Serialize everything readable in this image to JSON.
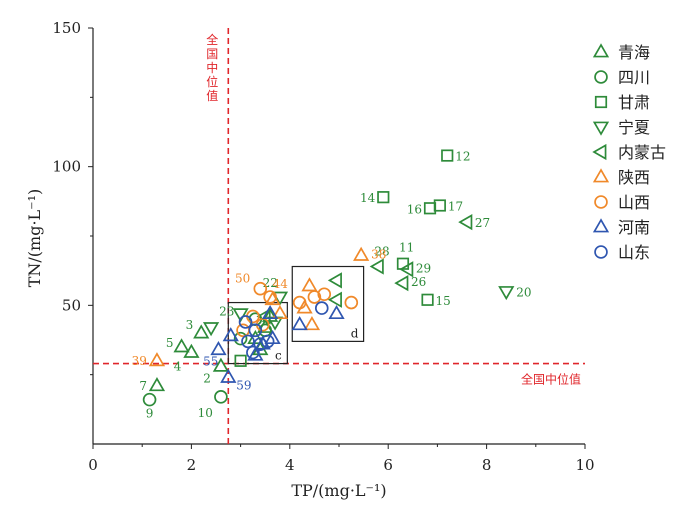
{
  "chart_data": {
    "type": "scatter",
    "xlabel": "TP/(mg·L⁻¹)",
    "ylabel": "TN/(mg·L⁻¹)",
    "xlim": [
      0,
      10
    ],
    "ylim": [
      0,
      150
    ],
    "xticks": [
      0,
      2,
      4,
      6,
      8,
      10
    ],
    "yticks": [
      50,
      100,
      150
    ],
    "x_tick_labels": [
      "0",
      "2",
      "4",
      "6",
      "8",
      "10"
    ],
    "y_tick_labels": [
      "50",
      "100",
      "150"
    ],
    "grid": false,
    "legend_position": "right",
    "reference_lines": [
      {
        "orientation": "vertical",
        "value": 2.75,
        "label": "全国中位值",
        "color": "#e0262b"
      },
      {
        "orientation": "horizontal",
        "value": 29,
        "label": "全国中位值",
        "color": "#e0262b"
      }
    ],
    "zoom_boxes": [
      {
        "label": "c",
        "x_range": [
          2.75,
          3.95
        ],
        "y_range": [
          29,
          51
        ]
      },
      {
        "label": "d",
        "x_range": [
          4.05,
          5.5
        ],
        "y_range": [
          37,
          64
        ]
      }
    ],
    "series": [
      {
        "name": "青海",
        "marker": "triangle-up",
        "color": "#2e8b3a",
        "points": [
          {
            "x": 1.3,
            "y": 21,
            "label": "7"
          },
          {
            "x": 1.8,
            "y": 35,
            "label": "5"
          },
          {
            "x": 2.0,
            "y": 33,
            "label": "4"
          },
          {
            "x": 2.6,
            "y": 28,
            "label": "2"
          },
          {
            "x": 2.2,
            "y": 40,
            "label": "3"
          },
          {
            "x": 3.3,
            "y": 38
          },
          {
            "x": 3.5,
            "y": 42
          },
          {
            "x": 3.6,
            "y": 46
          },
          {
            "x": 3.4,
            "y": 34
          }
        ]
      },
      {
        "name": "四川",
        "marker": "circle",
        "color": "#2e8b3a",
        "points": [
          {
            "x": 1.15,
            "y": 16,
            "label": "9"
          },
          {
            "x": 2.6,
            "y": 17,
            "label": "10"
          },
          {
            "x": 3.0,
            "y": 38
          },
          {
            "x": 3.3,
            "y": 45
          },
          {
            "x": 3.5,
            "y": 41
          }
        ]
      },
      {
        "name": "甘肃",
        "marker": "square",
        "color": "#2e8b3a",
        "points": [
          {
            "x": 7.2,
            "y": 104,
            "label": "12"
          },
          {
            "x": 5.9,
            "y": 89,
            "label": "14"
          },
          {
            "x": 6.85,
            "y": 85,
            "label": "16"
          },
          {
            "x": 7.05,
            "y": 86,
            "label": "17"
          },
          {
            "x": 6.3,
            "y": 65,
            "label": "11"
          },
          {
            "x": 6.8,
            "y": 52,
            "label": "15"
          },
          {
            "x": 3.0,
            "y": 30
          }
        ]
      },
      {
        "name": "宁夏",
        "marker": "triangle-down",
        "color": "#2e8b3a",
        "points": [
          {
            "x": 8.4,
            "y": 55,
            "label": "20"
          },
          {
            "x": 2.4,
            "y": 42,
            "label": "23"
          },
          {
            "x": 3.8,
            "y": 53,
            "label": "22"
          },
          {
            "x": 3.0,
            "y": 47
          },
          {
            "x": 3.7,
            "y": 44
          }
        ]
      },
      {
        "name": "内蒙古",
        "marker": "triangle-left",
        "color": "#2e8b3a",
        "points": [
          {
            "x": 7.6,
            "y": 80,
            "label": "27"
          },
          {
            "x": 5.8,
            "y": 64,
            "label": "28"
          },
          {
            "x": 6.4,
            "y": 63,
            "label": "29"
          },
          {
            "x": 6.3,
            "y": 58,
            "label": "26"
          },
          {
            "x": 4.95,
            "y": 59
          },
          {
            "x": 4.95,
            "y": 52
          },
          {
            "x": 3.5,
            "y": 46
          }
        ]
      },
      {
        "name": "陕西",
        "marker": "triangle-up",
        "color": "#f0892a",
        "points": [
          {
            "x": 1.3,
            "y": 30,
            "label": "39"
          },
          {
            "x": 5.45,
            "y": 68,
            "label": "38"
          },
          {
            "x": 3.65,
            "y": 52,
            "label": "44"
          },
          {
            "x": 4.4,
            "y": 57
          },
          {
            "x": 4.3,
            "y": 49
          },
          {
            "x": 4.45,
            "y": 43
          },
          {
            "x": 3.8,
            "y": 47
          }
        ]
      },
      {
        "name": "山西",
        "marker": "circle",
        "color": "#f0892a",
        "points": [
          {
            "x": 3.4,
            "y": 56,
            "label": "50"
          },
          {
            "x": 3.6,
            "y": 53
          },
          {
            "x": 4.2,
            "y": 51
          },
          {
            "x": 4.5,
            "y": 53
          },
          {
            "x": 4.7,
            "y": 54
          },
          {
            "x": 5.25,
            "y": 51
          },
          {
            "x": 3.25,
            "y": 46
          },
          {
            "x": 3.05,
            "y": 41
          },
          {
            "x": 3.45,
            "y": 43
          }
        ]
      },
      {
        "name": "河南",
        "marker": "triangle-up",
        "color": "#2f56b0",
        "points": [
          {
            "x": 2.55,
            "y": 34,
            "label": "55"
          },
          {
            "x": 2.75,
            "y": 24,
            "label": "59"
          },
          {
            "x": 2.8,
            "y": 39
          },
          {
            "x": 3.3,
            "y": 32
          },
          {
            "x": 3.45,
            "y": 36
          },
          {
            "x": 3.65,
            "y": 38
          },
          {
            "x": 4.2,
            "y": 43
          },
          {
            "x": 4.95,
            "y": 47
          },
          {
            "x": 3.6,
            "y": 47
          }
        ]
      },
      {
        "name": "山东",
        "marker": "circle",
        "color": "#2f56b0",
        "points": [
          {
            "x": 3.1,
            "y": 44
          },
          {
            "x": 3.3,
            "y": 41
          },
          {
            "x": 3.4,
            "y": 36
          },
          {
            "x": 3.55,
            "y": 37
          },
          {
            "x": 3.15,
            "y": 37
          },
          {
            "x": 3.25,
            "y": 33
          },
          {
            "x": 4.65,
            "y": 49
          }
        ]
      }
    ]
  }
}
